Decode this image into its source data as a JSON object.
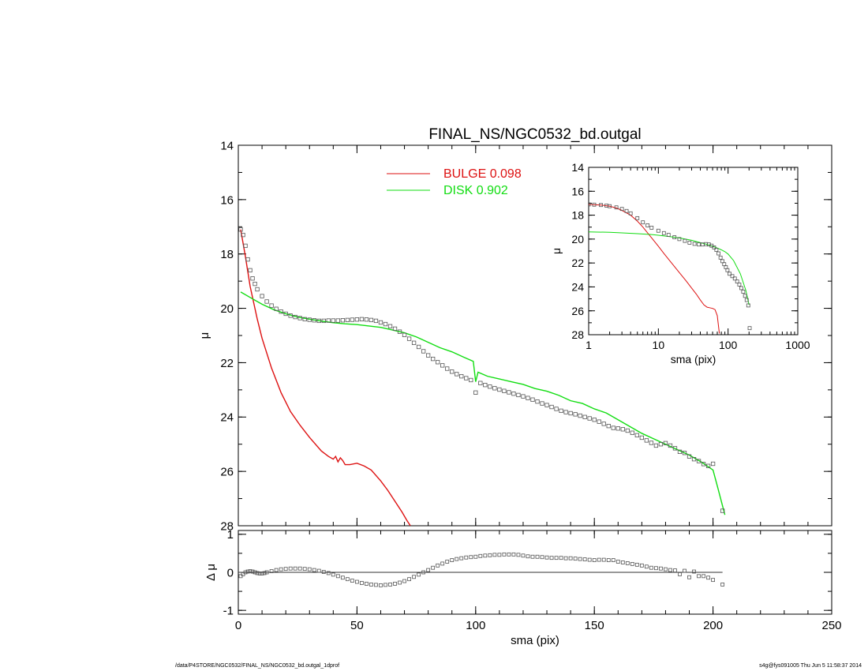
{
  "footer": {
    "path": "/data/P4STORE/NGC0532/FINAL_NS/NGC0532_bd.outgal_1dprof",
    "stamp": "s4g@fys091005  Thu Jun  5 11:58:37 2014"
  },
  "colors": {
    "bulge": "#dd1111",
    "disk": "#11dd11",
    "data": "#555555",
    "axis": "#000000"
  },
  "chart_data": [
    {
      "type": "line",
      "panel": "main",
      "title": "FINAL_NS/NGC0532_bd.outgal",
      "xlabel": "",
      "ylabel": "μ",
      "xlim": [
        0,
        250
      ],
      "ylim": [
        28,
        14
      ],
      "y_inverted": true,
      "xticks": [
        0,
        50,
        100,
        150,
        200,
        250
      ],
      "yticks": [
        14,
        16,
        18,
        20,
        22,
        24,
        26,
        28
      ],
      "legend_placement": "top-center",
      "legend": [
        {
          "label": "BULGE",
          "value": "0.098",
          "color": "#dd1111"
        },
        {
          "label": "DISK",
          "value": "0.902",
          "color": "#11dd11"
        }
      ],
      "series": [
        {
          "name": "BULGE",
          "kind": "line",
          "color": "#dd1111",
          "x": [
            1,
            3,
            5,
            8,
            10,
            14,
            18,
            22,
            26,
            30,
            35,
            38,
            40,
            41,
            42,
            43,
            44,
            45,
            47,
            50,
            53,
            56,
            60,
            63,
            66,
            69,
            71,
            72.5
          ],
          "y": [
            17.1,
            18.1,
            19.2,
            20.4,
            21.1,
            22.2,
            23.1,
            23.8,
            24.3,
            24.75,
            25.25,
            25.45,
            25.55,
            25.45,
            25.65,
            25.5,
            25.6,
            25.75,
            25.75,
            25.7,
            25.8,
            25.95,
            26.35,
            26.7,
            27.1,
            27.5,
            27.8,
            28.0
          ]
        },
        {
          "name": "DISK",
          "kind": "line",
          "color": "#11dd11",
          "x": [
            1,
            5,
            10,
            15,
            20,
            25,
            30,
            35,
            40,
            45,
            50,
            55,
            60,
            65,
            70,
            75,
            80,
            85,
            90,
            95,
            99,
            100,
            101,
            105,
            110,
            115,
            120,
            125,
            130,
            135,
            140,
            145,
            150,
            155,
            160,
            165,
            170,
            175,
            180,
            185,
            190,
            195,
            200,
            202,
            205
          ],
          "y": [
            19.4,
            19.6,
            19.85,
            20.05,
            20.2,
            20.32,
            20.4,
            20.47,
            20.53,
            20.57,
            20.6,
            20.65,
            20.7,
            20.8,
            20.9,
            21.05,
            21.25,
            21.45,
            21.6,
            21.8,
            21.95,
            22.7,
            22.35,
            22.5,
            22.6,
            22.7,
            22.8,
            22.95,
            23.05,
            23.2,
            23.4,
            23.5,
            23.7,
            23.85,
            24.1,
            24.35,
            24.6,
            24.8,
            25.0,
            25.2,
            25.4,
            25.65,
            25.95,
            26.6,
            27.6
          ]
        },
        {
          "name": "",
          "kind": "points",
          "x": [
            1,
            2,
            3,
            4,
            5,
            6,
            7,
            8,
            10,
            12,
            14,
            16,
            18,
            20,
            22,
            24,
            26,
            28,
            30,
            32,
            34,
            36,
            38,
            40,
            42,
            44,
            46,
            48,
            50,
            52,
            54,
            56,
            58,
            60,
            62,
            64,
            66,
            68,
            70,
            72,
            74,
            76,
            78,
            80,
            82,
            84,
            86,
            88,
            90,
            92,
            94,
            96,
            98,
            100,
            102,
            104,
            106,
            108,
            110,
            112,
            114,
            116,
            118,
            120,
            122,
            124,
            126,
            128,
            130,
            132,
            134,
            136,
            138,
            140,
            142,
            144,
            146,
            148,
            150,
            152,
            154,
            156,
            158,
            160,
            162,
            164,
            166,
            168,
            170,
            172,
            174,
            176,
            178,
            180,
            182,
            184,
            186,
            188,
            190,
            192,
            194,
            196,
            198,
            200,
            204
          ],
          "y": [
            17.1,
            17.3,
            17.7,
            18.2,
            18.6,
            18.9,
            19.1,
            19.3,
            19.55,
            19.75,
            19.9,
            20.02,
            20.12,
            20.2,
            20.27,
            20.32,
            20.36,
            20.4,
            20.42,
            20.44,
            20.46,
            20.46,
            20.45,
            20.45,
            20.45,
            20.44,
            20.43,
            20.42,
            20.41,
            20.4,
            20.41,
            20.43,
            20.46,
            20.52,
            20.58,
            20.66,
            20.75,
            20.86,
            20.98,
            21.12,
            21.27,
            21.42,
            21.58,
            21.73,
            21.86,
            21.98,
            22.1,
            22.22,
            22.33,
            22.42,
            22.5,
            22.57,
            22.64,
            23.1,
            22.75,
            22.82,
            22.88,
            22.94,
            22.99,
            23.04,
            23.09,
            23.14,
            23.19,
            23.24,
            23.3,
            23.36,
            23.43,
            23.5,
            23.56,
            23.63,
            23.7,
            23.77,
            23.82,
            23.86,
            23.9,
            23.95,
            24.0,
            24.05,
            24.1,
            24.17,
            24.25,
            24.33,
            24.4,
            24.42,
            24.45,
            24.5,
            24.58,
            24.67,
            24.76,
            24.86,
            24.95,
            25.05,
            25.0,
            24.96,
            25.05,
            25.15,
            25.28,
            25.32,
            25.45,
            25.55,
            25.62,
            25.73,
            25.8,
            25.72,
            27.45
          ]
        }
      ]
    },
    {
      "type": "scatter",
      "panel": "residual",
      "xlabel": "sma (pix)",
      "ylabel": "Δ μ",
      "xlim": [
        0,
        250
      ],
      "ylim": [
        -1.1,
        1.1
      ],
      "xticks": [
        0,
        50,
        100,
        150,
        200,
        250
      ],
      "yticks": [
        -1,
        0,
        1
      ],
      "zero_line": true,
      "series": [
        {
          "name": "",
          "kind": "points",
          "x": [
            1,
            2,
            3,
            4,
            5,
            6,
            7,
            8,
            9,
            10,
            11,
            12,
            14,
            16,
            18,
            20,
            22,
            24,
            26,
            28,
            30,
            32,
            34,
            36,
            38,
            40,
            42,
            44,
            46,
            48,
            50,
            52,
            54,
            56,
            58,
            60,
            62,
            64,
            66,
            68,
            70,
            72,
            74,
            76,
            78,
            80,
            82,
            84,
            86,
            88,
            90,
            92,
            94,
            96,
            98,
            100,
            102,
            104,
            106,
            108,
            110,
            112,
            114,
            116,
            118,
            120,
            122,
            124,
            126,
            128,
            130,
            132,
            134,
            136,
            138,
            140,
            142,
            144,
            146,
            148,
            150,
            152,
            154,
            156,
            158,
            160,
            162,
            164,
            166,
            168,
            170,
            172,
            174,
            176,
            178,
            180,
            182,
            184,
            186,
            188,
            190,
            192,
            194,
            196,
            198,
            200,
            204
          ],
          "y": [
            -0.1,
            -0.05,
            0.0,
            0.02,
            0.03,
            0.02,
            0.0,
            -0.02,
            -0.03,
            -0.03,
            -0.02,
            0.0,
            0.03,
            0.06,
            0.08,
            0.09,
            0.1,
            0.1,
            0.1,
            0.09,
            0.08,
            0.06,
            0.04,
            0.01,
            -0.02,
            -0.06,
            -0.1,
            -0.14,
            -0.18,
            -0.22,
            -0.25,
            -0.28,
            -0.3,
            -0.32,
            -0.33,
            -0.34,
            -0.33,
            -0.32,
            -0.3,
            -0.27,
            -0.23,
            -0.18,
            -0.12,
            -0.06,
            0.0,
            0.06,
            0.12,
            0.18,
            0.23,
            0.28,
            0.32,
            0.35,
            0.37,
            0.39,
            0.4,
            0.41,
            0.43,
            0.44,
            0.45,
            0.46,
            0.46,
            0.47,
            0.47,
            0.47,
            0.46,
            0.44,
            0.42,
            0.41,
            0.41,
            0.4,
            0.39,
            0.38,
            0.38,
            0.38,
            0.37,
            0.37,
            0.36,
            0.35,
            0.34,
            0.33,
            0.32,
            0.33,
            0.33,
            0.32,
            0.32,
            0.28,
            0.26,
            0.24,
            0.22,
            0.2,
            0.18,
            0.15,
            0.12,
            0.11,
            0.1,
            0.08,
            0.06,
            0.05,
            -0.05,
            0.04,
            -0.13,
            0.02,
            -0.1,
            -0.1,
            -0.14,
            -0.2,
            -0.32
          ]
        }
      ]
    },
    {
      "type": "line",
      "panel": "inset",
      "xlabel": "sma (pix)",
      "ylabel": "μ",
      "xscale": "log",
      "xlim": [
        1,
        1000
      ],
      "ylim": [
        28,
        14
      ],
      "y_inverted": true,
      "xticks": [
        1,
        10,
        100,
        1000
      ],
      "xticklabels": [
        "1",
        "10",
        "100",
        "1000"
      ],
      "yticks": [
        14,
        16,
        18,
        20,
        22,
        24,
        26,
        28
      ],
      "series": [
        {
          "name": "",
          "kind": "line",
          "color": "#dd1111",
          "x": [
            1,
            1.5,
            2,
            2.5,
            3,
            4,
            5,
            6,
            8,
            10,
            12,
            15,
            20,
            25,
            30,
            35,
            40,
            45,
            50,
            55,
            60,
            65,
            70,
            75
          ],
          "y": [
            17.1,
            17.15,
            17.25,
            17.4,
            17.6,
            18.0,
            18.5,
            19.0,
            19.9,
            20.6,
            21.2,
            21.9,
            22.8,
            23.5,
            24.1,
            24.6,
            25.1,
            25.5,
            25.7,
            25.75,
            25.8,
            25.9,
            26.4,
            27.9
          ]
        },
        {
          "name": "",
          "kind": "line",
          "color": "#11dd11",
          "x": [
            1,
            2,
            3,
            5,
            8,
            10,
            15,
            20,
            30,
            40,
            50,
            60,
            70,
            80,
            90,
            100,
            120,
            150,
            180,
            200
          ],
          "y": [
            19.4,
            19.43,
            19.48,
            19.55,
            19.62,
            19.68,
            19.8,
            19.9,
            20.1,
            20.3,
            20.45,
            20.6,
            20.75,
            20.9,
            21.05,
            21.25,
            21.8,
            22.9,
            24.3,
            25.5
          ]
        },
        {
          "name": "",
          "kind": "points",
          "x": [
            1,
            1.2,
            1.5,
            1.8,
            2,
            2.5,
            3,
            3.5,
            4,
            5,
            6,
            7,
            8,
            10,
            12,
            14,
            17,
            20,
            24,
            28,
            33,
            38,
            43,
            48,
            53,
            58,
            63,
            68,
            73,
            78,
            83,
            88,
            93,
            98,
            105,
            115,
            125,
            135,
            145,
            155,
            165,
            175,
            185,
            195,
            204
          ],
          "y": [
            17.1,
            17.12,
            17.15,
            17.2,
            17.25,
            17.35,
            17.48,
            17.65,
            17.85,
            18.25,
            18.6,
            18.85,
            19.05,
            19.3,
            19.5,
            19.65,
            19.85,
            20.0,
            20.15,
            20.3,
            20.4,
            20.45,
            20.45,
            20.42,
            20.45,
            20.55,
            20.7,
            20.9,
            21.2,
            21.55,
            21.85,
            22.1,
            22.35,
            22.6,
            22.9,
            23.1,
            23.3,
            23.55,
            23.8,
            24.1,
            24.4,
            24.75,
            25.1,
            25.55,
            27.45
          ]
        }
      ]
    }
  ]
}
